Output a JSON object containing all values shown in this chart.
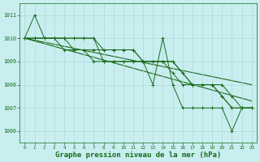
{
  "background_color": "#c8eef0",
  "grid_color": "#b0d8da",
  "line_color": "#1a6b1a",
  "xlabel": "Graphe pression niveau de la mer (hPa)",
  "xlim": [
    -0.5,
    23.5
  ],
  "ylim": [
    1005.5,
    1011.5
  ],
  "yticks": [
    1006,
    1007,
    1008,
    1009,
    1010,
    1011
  ],
  "xticks": [
    0,
    1,
    2,
    3,
    4,
    5,
    6,
    7,
    8,
    9,
    10,
    11,
    12,
    13,
    14,
    15,
    16,
    17,
    18,
    19,
    20,
    21,
    22,
    23
  ],
  "series": [
    [
      1010.0,
      1011.0,
      1010.0,
      1010.0,
      1010.0,
      1010.0,
      1010.0,
      1010.0,
      1009.0,
      1009.0,
      1009.0,
      1009.0,
      1009.0,
      1008.0,
      1010.0,
      1008.0,
      1007.0,
      1007.0,
      1007.0,
      1007.0,
      1007.0,
      1006.0,
      1007.0,
      1007.0
    ],
    [
      1010.0,
      1010.0,
      1010.0,
      1010.0,
      1010.0,
      1010.0,
      1010.0,
      1010.0,
      1009.5,
      1009.5,
      1009.5,
      1009.5,
      1009.0,
      1009.0,
      1009.0,
      1008.5,
      1008.0,
      1008.0,
      1008.0,
      1008.0,
      1007.5,
      1007.0,
      1007.0,
      1007.0
    ],
    [
      1010.0,
      1010.0,
      1010.0,
      1010.0,
      1009.5,
      1009.5,
      1009.5,
      1009.0,
      1009.0,
      1009.0,
      1009.0,
      1009.0,
      1009.0,
      1009.0,
      1009.0,
      1009.0,
      1008.5,
      1008.0,
      1008.0,
      1008.0,
      1008.0,
      1007.5,
      1007.0,
      1007.0
    ],
    [
      1010.0,
      1010.0,
      1010.0,
      1010.0,
      1010.0,
      1009.5,
      1009.5,
      1009.5,
      1009.5,
      1009.5,
      1009.5,
      1009.5,
      1009.0,
      1009.0,
      1009.0,
      1009.0,
      1008.5,
      1008.0,
      1008.0,
      1008.0,
      1007.5,
      1007.0,
      1007.0,
      1007.0
    ]
  ],
  "trend_line1": {
    "x": [
      0,
      23
    ],
    "y": [
      1010.0,
      1007.3
    ]
  },
  "trend_line2": {
    "x": [
      0,
      23
    ],
    "y": [
      1010.0,
      1008.0
    ]
  }
}
